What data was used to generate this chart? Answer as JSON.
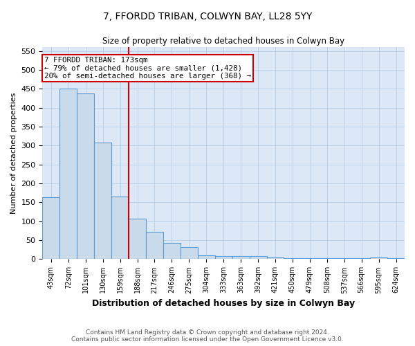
{
  "title1": "7, FFORDD TRIBAN, COLWYN BAY, LL28 5YY",
  "title2": "Size of property relative to detached houses in Colwyn Bay",
  "xlabel": "Distribution of detached houses by size in Colwyn Bay",
  "ylabel": "Number of detached properties",
  "categories": [
    "43sqm",
    "72sqm",
    "101sqm",
    "130sqm",
    "159sqm",
    "188sqm",
    "217sqm",
    "246sqm",
    "275sqm",
    "304sqm",
    "333sqm",
    "363sqm",
    "392sqm",
    "421sqm",
    "450sqm",
    "479sqm",
    "508sqm",
    "537sqm",
    "566sqm",
    "595sqm",
    "624sqm"
  ],
  "values": [
    163,
    450,
    437,
    307,
    165,
    107,
    73,
    43,
    31,
    10,
    9,
    9,
    9,
    4,
    3,
    3,
    2,
    2,
    2,
    4,
    3
  ],
  "bar_color": "#c9daea",
  "bar_edge_color": "#5b9bd5",
  "ylim": [
    0,
    560
  ],
  "yticks": [
    0,
    50,
    100,
    150,
    200,
    250,
    300,
    350,
    400,
    450,
    500,
    550
  ],
  "vline_color": "#cc0000",
  "annotation_title": "7 FFORDD TRIBAN: 173sqm",
  "annotation_line1": "← 79% of detached houses are smaller (1,428)",
  "annotation_line2": "20% of semi-detached houses are larger (368) →",
  "annotation_box_color": "#ffffff",
  "annotation_box_edge": "#cc0000",
  "footer1": "Contains HM Land Registry data © Crown copyright and database right 2024.",
  "footer2": "Contains public sector information licensed under the Open Government Licence v3.0.",
  "background_color": "#ffffff",
  "plot_bg_color": "#dce8f5",
  "grid_color": "#b8cfe8"
}
